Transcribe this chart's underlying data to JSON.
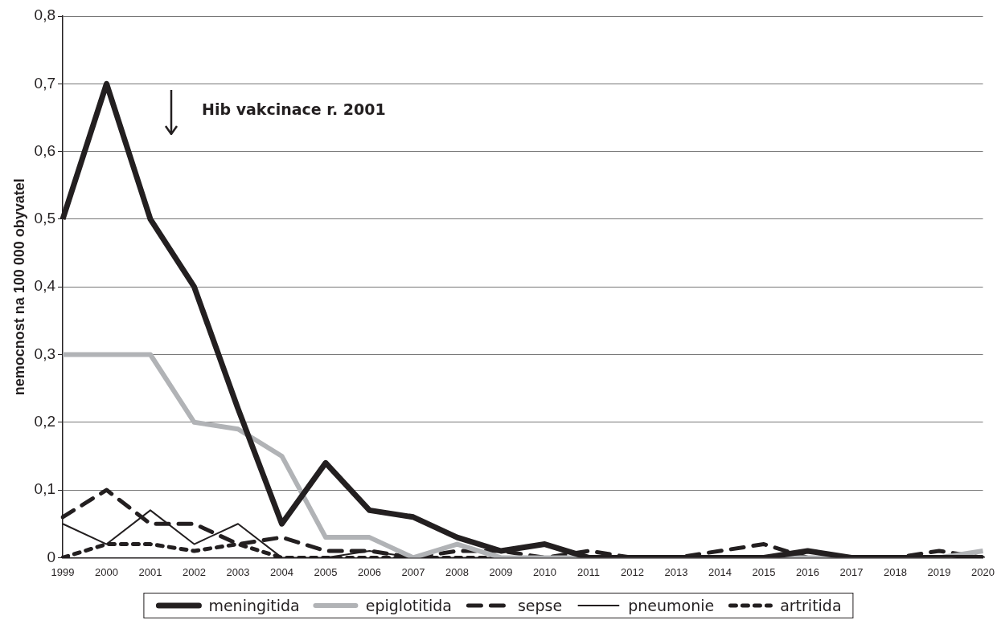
{
  "chart_data": {
    "type": "line",
    "ylabel": "nemocnost na 100 000 obyvatel",
    "categories": [
      "1999",
      "2000",
      "2001",
      "2002",
      "2003",
      "2004",
      "2005",
      "2006",
      "2007",
      "2008",
      "2009",
      "2010",
      "2011",
      "2012",
      "2013",
      "2014",
      "2015",
      "2016",
      "2017",
      "2018",
      "2019",
      "2020"
    ],
    "series": [
      {
        "name": "meningitida",
        "color": "#231f20",
        "line_style": "solid",
        "values": [
          0.5,
          0.7,
          0.5,
          0.4,
          0.22,
          0.05,
          0.14,
          0.07,
          0.06,
          0.03,
          0.01,
          0.02,
          0,
          0,
          0,
          0,
          0,
          0.01,
          0,
          0,
          0,
          0
        ]
      },
      {
        "name": "epiglotitida",
        "color": "#b1b3b6",
        "line_style": "solid",
        "values": [
          0.3,
          0.3,
          0.3,
          0.2,
          0.19,
          0.15,
          0.03,
          0.03,
          0,
          0.02,
          0,
          0,
          0,
          0,
          0,
          0,
          0,
          0,
          0,
          0,
          0,
          0.01
        ]
      },
      {
        "name": "sepse",
        "color": "#231f20",
        "line_style": "dashed",
        "values": [
          0.06,
          0.1,
          0.05,
          0.05,
          0.02,
          0.03,
          0.01,
          0.01,
          0,
          0.01,
          0.01,
          0,
          0.01,
          0,
          0,
          0.01,
          0.02,
          0,
          0,
          0,
          0.01,
          0
        ]
      },
      {
        "name": "pneumonie",
        "color": "#231f20",
        "line_style": "solid",
        "values": [
          0.05,
          0.02,
          0.07,
          0.02,
          0.05,
          0,
          0,
          0.01,
          0,
          0,
          0,
          0,
          0,
          0,
          0,
          0,
          0,
          0.01,
          0,
          0,
          0,
          0
        ]
      },
      {
        "name": "artritida",
        "color": "#231f20",
        "line_style": "dotted",
        "values": [
          0,
          0.02,
          0.02,
          0.01,
          0.02,
          0,
          0,
          0,
          0,
          0,
          0,
          0,
          0,
          0,
          0,
          0,
          0,
          0,
          0,
          0,
          0,
          0
        ]
      }
    ],
    "ylim": [
      0,
      0.8
    ],
    "yticks": [
      0,
      {
        "value": 0.1,
        "label": "0,1"
      },
      {
        "value": 0.2,
        "label": "0,2"
      },
      {
        "value": 0.3,
        "label": "0,3"
      },
      {
        "value": 0.4,
        "label": "0,4"
      },
      {
        "value": 0.5,
        "label": "0,5"
      },
      {
        "value": 0.6,
        "label": "0,6"
      },
      {
        "value": 0.7,
        "label": "0,7"
      },
      {
        "value": 0.8,
        "label": "0,8"
      }
    ],
    "grid": "y",
    "legend": "bottom",
    "marker": "none",
    "annotations": [
      "Hib vakcinace r. 2001"
    ]
  }
}
